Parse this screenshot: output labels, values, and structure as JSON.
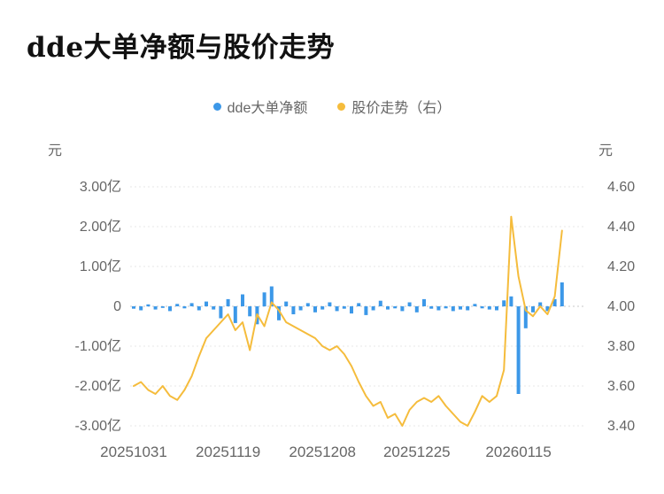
{
  "title": "dde大单净额与股价走势",
  "legend": {
    "items": [
      {
        "label": "dde大单净额",
        "color": "#3c98e8"
      },
      {
        "label": "股价走势（右）",
        "color": "#f5bc3c"
      }
    ]
  },
  "axes": {
    "left_unit": "元",
    "right_unit": "元",
    "left_tick_labels": [
      "3.00亿",
      "2.00亿",
      "1.00亿",
      "0",
      "-1.00亿",
      "-2.00亿",
      "-3.00亿"
    ],
    "right_tick_labels": [
      "4.60",
      "4.40",
      "4.20",
      "4.00",
      "3.80",
      "3.60",
      "3.40"
    ],
    "x_tick_labels": [
      "20251031",
      "20251119",
      "20251208",
      "20251225",
      "20260115"
    ]
  },
  "chart_data": {
    "type": "bar",
    "title": "dde大单净额与股价走势",
    "x": [
      "20251031",
      "20251103",
      "20251104",
      "20251105",
      "20251106",
      "20251107",
      "20251110",
      "20251111",
      "20251112",
      "20251113",
      "20251114",
      "20251117",
      "20251118",
      "20251119",
      "20251120",
      "20251121",
      "20251124",
      "20251125",
      "20251126",
      "20251127",
      "20251128",
      "20251201",
      "20251202",
      "20251203",
      "20251204",
      "20251205",
      "20251208",
      "20251209",
      "20251210",
      "20251211",
      "20251212",
      "20251215",
      "20251216",
      "20251217",
      "20251218",
      "20251219",
      "20251222",
      "20251223",
      "20251224",
      "20251225",
      "20251226",
      "20251229",
      "20251230",
      "20251231",
      "20260102",
      "20260105",
      "20260106",
      "20260107",
      "20260108",
      "20260109",
      "20260112",
      "20260113",
      "20260114",
      "20260115",
      "20260116",
      "20260119",
      "20260120",
      "20260121",
      "20260122",
      "20260123"
    ],
    "series": [
      {
        "name": "dde大单净额",
        "type": "bar",
        "axis": "left",
        "unit": "亿元",
        "color": "#3c98e8",
        "values": [
          -0.06,
          -0.1,
          0.05,
          -0.08,
          -0.04,
          -0.12,
          0.06,
          -0.05,
          0.08,
          -0.1,
          0.12,
          -0.08,
          -0.3,
          0.18,
          -0.42,
          0.3,
          -0.25,
          -0.45,
          0.35,
          0.5,
          -0.35,
          0.12,
          -0.2,
          -0.1,
          0.08,
          -0.15,
          -0.08,
          0.1,
          -0.12,
          -0.06,
          -0.18,
          0.08,
          -0.22,
          -0.1,
          0.14,
          -0.08,
          -0.05,
          -0.12,
          0.1,
          -0.15,
          0.18,
          -0.06,
          -0.1,
          -0.05,
          -0.12,
          -0.08,
          -0.1,
          0.06,
          -0.05,
          -0.08,
          -0.1,
          0.15,
          0.25,
          -2.2,
          -0.55,
          -0.15,
          0.1,
          -0.12,
          0.18,
          0.6
        ]
      },
      {
        "name": "股价走势",
        "type": "line",
        "axis": "right",
        "unit": "元",
        "color": "#f5bc3c",
        "values": [
          3.6,
          3.62,
          3.58,
          3.56,
          3.6,
          3.55,
          3.53,
          3.58,
          3.65,
          3.75,
          3.84,
          3.88,
          3.92,
          3.96,
          3.88,
          3.92,
          3.78,
          3.96,
          3.9,
          4.02,
          3.98,
          3.92,
          3.9,
          3.88,
          3.86,
          3.84,
          3.8,
          3.78,
          3.8,
          3.76,
          3.7,
          3.62,
          3.55,
          3.5,
          3.52,
          3.44,
          3.46,
          3.4,
          3.48,
          3.52,
          3.54,
          3.52,
          3.55,
          3.5,
          3.46,
          3.42,
          3.4,
          3.47,
          3.55,
          3.52,
          3.55,
          3.68,
          4.45,
          4.15,
          3.98,
          3.95,
          4.0,
          3.96,
          4.05,
          4.38
        ]
      }
    ],
    "left_axis": {
      "unit": "亿元",
      "min": -3,
      "max": 3,
      "ticks": [
        3,
        2,
        1,
        0,
        -1,
        -2,
        -3
      ]
    },
    "right_axis": {
      "unit": "元",
      "min": 3.4,
      "max": 4.6,
      "ticks": [
        4.6,
        4.4,
        4.2,
        4.0,
        3.8,
        3.6,
        3.4
      ]
    },
    "x_ticks": [
      "20251031",
      "20251119",
      "20251208",
      "20251225",
      "20260115"
    ],
    "grid": "dotted-horizontal",
    "legend_position": "top-center"
  }
}
